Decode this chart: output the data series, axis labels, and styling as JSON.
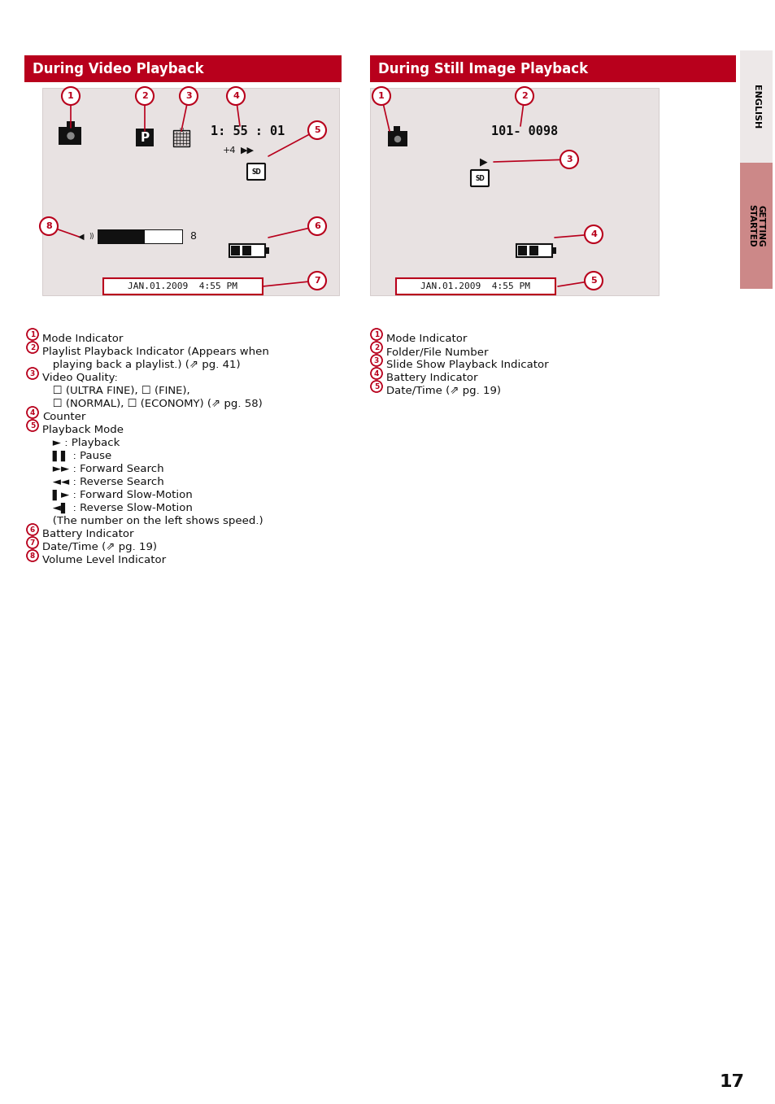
{
  "page_bg": "#ffffff",
  "header_color": "#b8001c",
  "left_header_text": "During Video Playback",
  "right_header_text": "During Still Image Playback",
  "screen_bg": "#e8e2e2",
  "screen_border": "#c8bebe",
  "date_box_color": "#b8001c",
  "circle_color": "#b8001c",
  "english_tab_bg": "#ede8e8",
  "getting_started_bg": "#cc8888",
  "page_number": "17"
}
